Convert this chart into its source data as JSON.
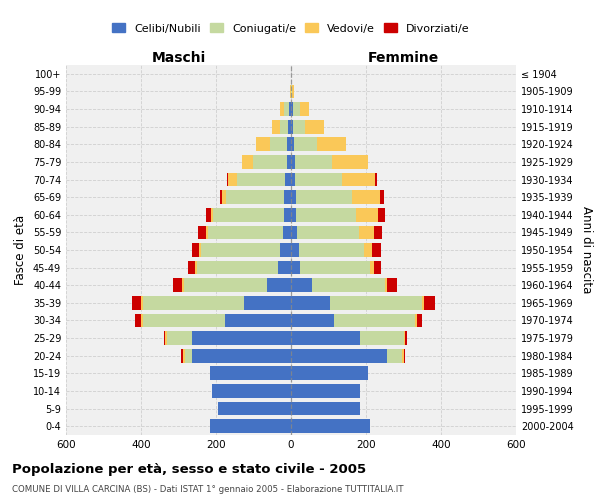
{
  "age_groups": [
    "100+",
    "95-99",
    "90-94",
    "85-89",
    "80-84",
    "75-79",
    "70-74",
    "65-69",
    "60-64",
    "55-59",
    "50-54",
    "45-49",
    "40-44",
    "35-39",
    "30-34",
    "25-29",
    "20-24",
    "15-19",
    "10-14",
    "5-9",
    "0-4"
  ],
  "birth_years": [
    "≤ 1904",
    "1905-1909",
    "1910-1914",
    "1915-1919",
    "1920-1924",
    "1925-1929",
    "1930-1934",
    "1935-1939",
    "1940-1944",
    "1945-1949",
    "1950-1954",
    "1955-1959",
    "1960-1964",
    "1965-1969",
    "1970-1974",
    "1975-1979",
    "1980-1984",
    "1985-1989",
    "1990-1994",
    "1995-1999",
    "2000-2004"
  ],
  "male_celibi": [
    0,
    0,
    5,
    8,
    10,
    12,
    15,
    18,
    18,
    22,
    30,
    35,
    65,
    125,
    175,
    265,
    265,
    215,
    210,
    195,
    215
  ],
  "male_coniugati": [
    0,
    0,
    15,
    22,
    45,
    90,
    130,
    155,
    190,
    200,
    210,
    215,
    220,
    270,
    220,
    65,
    18,
    0,
    0,
    0,
    0
  ],
  "male_vedovi": [
    0,
    2,
    10,
    22,
    38,
    28,
    22,
    12,
    5,
    5,
    5,
    5,
    5,
    5,
    5,
    5,
    5,
    0,
    0,
    0,
    0
  ],
  "male_divorziati": [
    0,
    0,
    0,
    0,
    0,
    0,
    5,
    5,
    15,
    20,
    20,
    20,
    25,
    25,
    15,
    5,
    5,
    0,
    0,
    0,
    0
  ],
  "female_celibi": [
    0,
    0,
    5,
    5,
    8,
    10,
    10,
    12,
    12,
    15,
    20,
    25,
    55,
    105,
    115,
    185,
    255,
    205,
    185,
    185,
    210
  ],
  "female_coniugati": [
    0,
    2,
    18,
    32,
    60,
    100,
    125,
    150,
    160,
    165,
    175,
    185,
    195,
    245,
    215,
    115,
    40,
    0,
    0,
    0,
    0
  ],
  "female_vedovi": [
    0,
    5,
    25,
    52,
    78,
    95,
    90,
    75,
    60,
    40,
    22,
    12,
    5,
    5,
    5,
    5,
    5,
    0,
    0,
    0,
    0
  ],
  "female_divorziati": [
    0,
    0,
    0,
    0,
    0,
    0,
    5,
    10,
    18,
    22,
    22,
    18,
    28,
    28,
    15,
    5,
    5,
    0,
    0,
    0,
    0
  ],
  "color_celibi": "#4472c4",
  "color_coniugati": "#c5d9a0",
  "color_vedovi": "#fac858",
  "color_divorziati": "#cc0000",
  "title": "Popolazione per età, sesso e stato civile - 2005",
  "subtitle": "COMUNE DI VILLA CARCINA (BS) - Dati ISTAT 1° gennaio 2005 - Elaborazione TUTTITALIA.IT",
  "label_maschi": "Maschi",
  "label_femmine": "Femmine",
  "ylabel_left": "Fasce di età",
  "ylabel_right": "Anni di nascita",
  "xlim": 600,
  "bg_color": "#f0f0f0",
  "grid_color": "#cccccc",
  "legend_labels": [
    "Celibi/Nubili",
    "Coniugati/e",
    "Vedovi/e",
    "Divorziati/e"
  ]
}
